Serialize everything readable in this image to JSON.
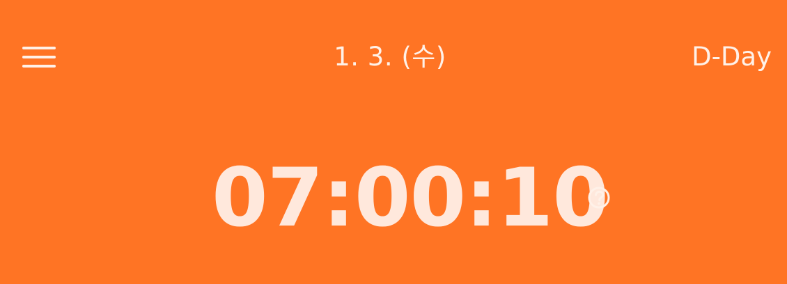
{
  "header": {
    "menu_icon": "menu-icon",
    "date_title": "1. 3. (수)",
    "dday_label": "D-Day"
  },
  "timer": {
    "elapsed": "07:00:10",
    "help_icon": "question-circle-icon"
  },
  "colors": {
    "background": "#FF7424",
    "foreground": "#FFF1E8",
    "timer_text": "#FFE8DC"
  }
}
